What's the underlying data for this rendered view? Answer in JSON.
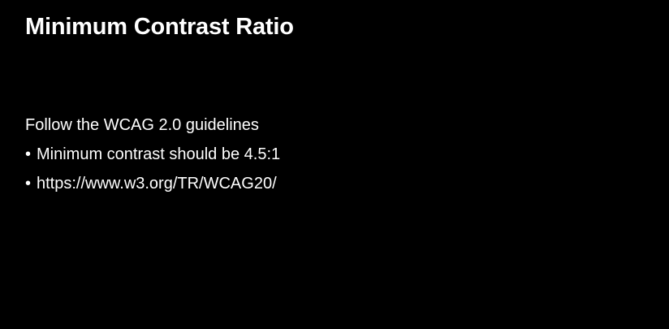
{
  "slide": {
    "title": "Minimum Contrast Ratio",
    "intro": "Follow the WCAG 2.0 guidelines",
    "bullet_char": "•",
    "bullets": [
      "Minimum contrast should be 4.5:1",
      "https://www.w3.org/TR/WCAG20/"
    ]
  },
  "colors": {
    "background": "#000000",
    "text": "#ffffff"
  }
}
